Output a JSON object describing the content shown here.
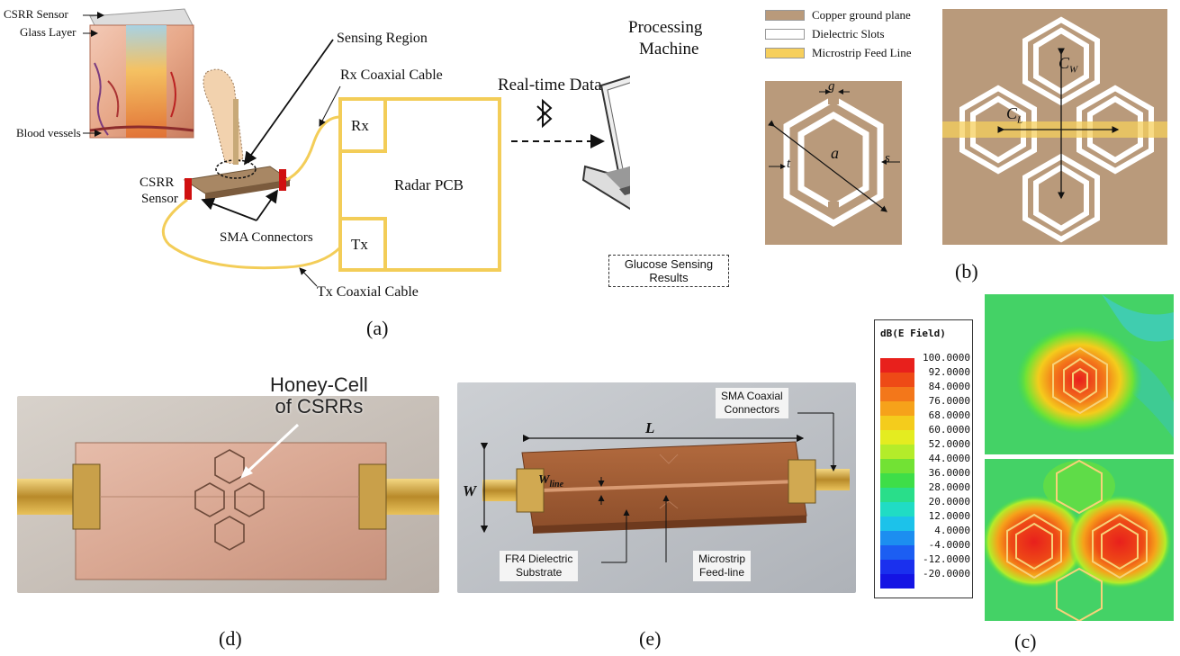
{
  "panel_a": {
    "csrr_sensor_top": "CSRR Sensor",
    "glass_layer": "Glass Layer",
    "blood_vessels": "Blood vessels",
    "csrr_sensor_side_1": "CSRR",
    "csrr_sensor_side_2": "Sensor",
    "sensing_region": "Sensing Region",
    "rx_cable": "Rx Coaxial Cable",
    "tx_cable": "Tx Coaxial Cable",
    "sma": "SMA Connectors",
    "rx": "Rx",
    "tx": "Tx",
    "radar_pcb": "Radar PCB",
    "realtime": "Real-time Data",
    "processing_1": "Processing",
    "processing_2": "Machine",
    "glucose_1": "Glucose Sensing",
    "glucose_2": "Results",
    "panel_label": "(a)"
  },
  "panel_b": {
    "legend": [
      {
        "label": "Copper ground plane",
        "color": "#b99a7b"
      },
      {
        "label": "Dielectric Slots",
        "color": "#ffffff"
      },
      {
        "label": "Microstrip Feed Line",
        "color": "#f6cf5c"
      }
    ],
    "g": "g",
    "a": "a",
    "s": "s",
    "t": "t",
    "cw_main": "C",
    "cw_sub": "W",
    "cl_main": "C",
    "cl_sub": "L",
    "panel_label": "(b)"
  },
  "panel_c": {
    "colorbar_title": "dB(E Field)",
    "colorbar": [
      {
        "value": "100.0000",
        "color": "#e8201c"
      },
      {
        "value": "92.0000",
        "color": "#ee4a16"
      },
      {
        "value": "84.0000",
        "color": "#f3771a"
      },
      {
        "value": "76.0000",
        "color": "#f6a21a"
      },
      {
        "value": "68.0000",
        "color": "#f4cc1c"
      },
      {
        "value": "60.0000",
        "color": "#e4ec20"
      },
      {
        "value": "52.0000",
        "color": "#b4ec2a"
      },
      {
        "value": "44.0000",
        "color": "#72e234"
      },
      {
        "value": "36.0000",
        "color": "#3ede48"
      },
      {
        "value": "28.0000",
        "color": "#29de8a"
      },
      {
        "value": "20.0000",
        "color": "#20dcc4"
      },
      {
        "value": "12.0000",
        "color": "#1cc2ea"
      },
      {
        "value": "4.0000",
        "color": "#1c8ef0"
      },
      {
        "value": "-4.0000",
        "color": "#1c5ef2"
      },
      {
        "value": "-12.0000",
        "color": "#1a30ee"
      },
      {
        "value": "-20.0000",
        "color": "#1414e4"
      }
    ],
    "panel_label": "(c)"
  },
  "panel_d": {
    "callout_1": "Honey-Cell",
    "callout_2": "of CSRRs",
    "panel_label": "(d)"
  },
  "panel_e": {
    "sma_1": "SMA Coaxial",
    "sma_2": "Connectors",
    "L": "L",
    "W": "W",
    "wline_main": "W",
    "wline_sub": "line",
    "fr4_1": "FR4 Dielectric",
    "fr4_2": "Substrate",
    "feed_1": "Microstrip",
    "feed_2": "Feed-line",
    "panel_label": "(e)"
  }
}
